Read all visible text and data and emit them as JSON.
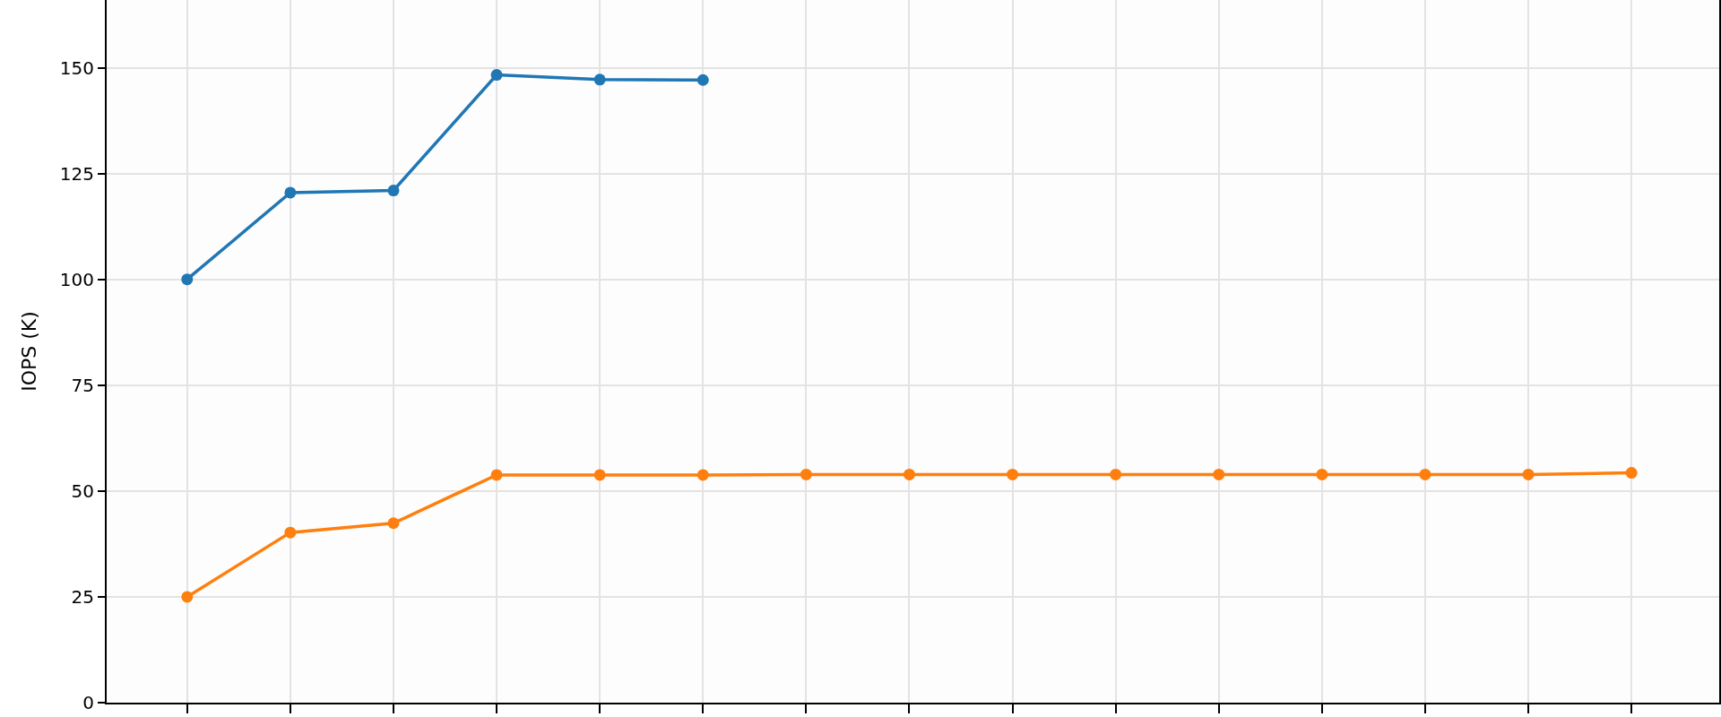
{
  "chart_data": {
    "type": "line",
    "ylabel": "IOPS (K)",
    "categories": [
      null,
      null,
      null,
      null,
      null,
      null,
      null,
      null,
      null,
      null,
      null,
      null,
      null,
      null,
      null
    ],
    "series": [
      {
        "color": "#1f77b4",
        "values": [
          100,
          120.5,
          121,
          148.3,
          147.2,
          147.1,
          null,
          null,
          null,
          null,
          null,
          null,
          null,
          null,
          null
        ]
      },
      {
        "color": "#ff7f0e",
        "values": [
          25,
          40.2,
          42.4,
          53.8,
          53.8,
          53.8,
          53.9,
          53.9,
          53.9,
          53.9,
          53.9,
          53.9,
          53.9,
          53.9,
          54.3
        ]
      }
    ],
    "ylim": [
      0,
      166
    ],
    "yticks": [
      0,
      25,
      50,
      75,
      100,
      125,
      150
    ],
    "grid": true,
    "marker": "circle",
    "line_style": "solid",
    "tick_labels": "y"
  }
}
